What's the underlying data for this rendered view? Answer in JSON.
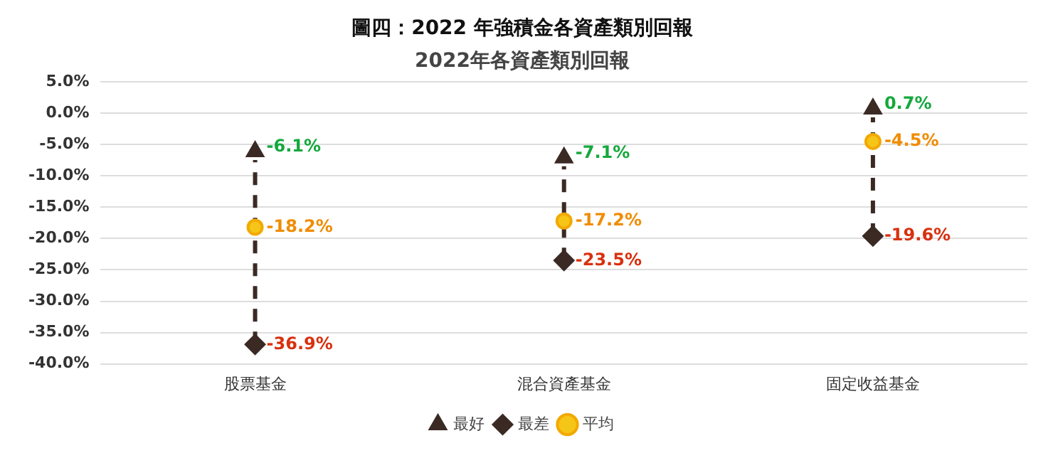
{
  "chart_data": {
    "type": "scatter",
    "title": "圖四：2022 年強積金各資產類別回報",
    "subtitle": "2022年各資產類別回報",
    "categories": [
      "股票基金",
      "混合資產基金",
      "固定收益基金"
    ],
    "series": [
      {
        "name": "最好",
        "color": "#3b2a24",
        "marker": "triangle",
        "values": [
          -6.1,
          -7.1,
          0.7
        ],
        "value_labels": [
          "-6.1%",
          "-7.1%",
          "0.7%"
        ]
      },
      {
        "name": "最差",
        "color": "#3b2a24",
        "marker": "diamond",
        "values": [
          -36.9,
          -23.5,
          -19.6
        ],
        "value_labels": [
          "-36.9%",
          "-23.5%",
          "-19.6%"
        ]
      },
      {
        "name": "平均",
        "color": "#f5c518",
        "marker": "circle",
        "values": [
          -18.2,
          -17.2,
          -4.5
        ],
        "value_labels": [
          "-18.2%",
          "-17.2%",
          "-4.5%"
        ]
      }
    ],
    "ylim": [
      -40,
      5
    ],
    "yticks": [
      {
        "value": 5,
        "label": "5.0%"
      },
      {
        "value": 0,
        "label": "0.0%"
      },
      {
        "value": -5,
        "label": "-5.0%"
      },
      {
        "value": -10,
        "label": "-10.0%"
      },
      {
        "value": -15,
        "label": "-15.0%"
      },
      {
        "value": -20,
        "label": "-20.0%"
      },
      {
        "value": -25,
        "label": "-25.0%"
      },
      {
        "value": -30,
        "label": "-30.0%"
      },
      {
        "value": -35,
        "label": "-35.0%"
      },
      {
        "value": -40,
        "label": "-40.0%"
      }
    ],
    "grid": "y",
    "legend": "bottom"
  }
}
